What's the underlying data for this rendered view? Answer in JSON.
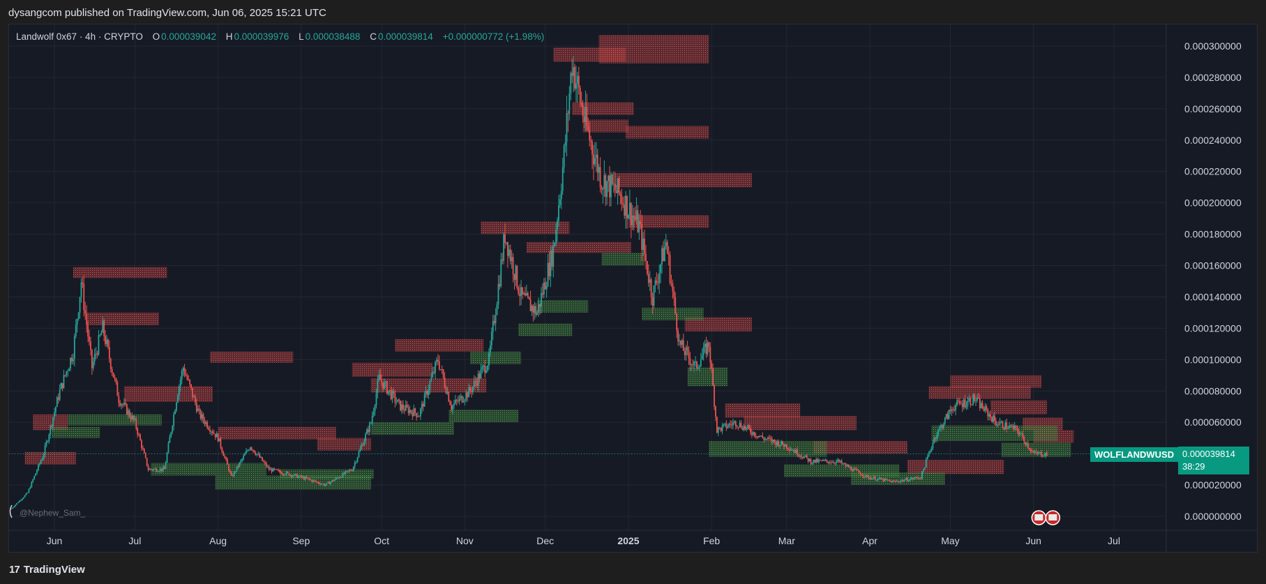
{
  "header": {
    "publish_text": "dysangcom published on TradingView.com, Jun 06, 2025 15:21 UTC"
  },
  "legend": {
    "symbol": "Landwolf 0x67 · 4h · CRYPTO",
    "o_label": "O",
    "o_value": "0.000039042",
    "h_label": "H",
    "h_value": "0.000039976",
    "l_label": "L",
    "l_value": "0.000038488",
    "c_label": "C",
    "c_value": "0.000039814",
    "change": "+0.000000772 (+1.98%)"
  },
  "price_tag": {
    "symbol": "WOLFLANDWUSD",
    "price": "0.000039814",
    "countdown": "38:29"
  },
  "watermark_user": "@Nephew_Sam_",
  "footer": {
    "brand": "TradingView",
    "logo_mark": "17"
  },
  "colors": {
    "background": "#161a25",
    "grid": "#232733",
    "up": "#26a69a",
    "down": "#ef5350",
    "supply_zone": "#b33b3b",
    "demand_zone": "#3d7a3a",
    "price_line": "#089981"
  },
  "chart_data": {
    "type": "candlestick",
    "title": "",
    "xlabel": "",
    "ylabel": "",
    "ylim": [
      0.0,
      0.0003
    ],
    "y_ticks": [
      "0.000300000",
      "0.000280000",
      "0.000260000",
      "0.000240000",
      "0.000220000",
      "0.000200000",
      "0.000180000",
      "0.000160000",
      "0.000140000",
      "0.000120000",
      "0.000100000",
      "0.000080000",
      "0.000060000",
      "0.000040000",
      "0.000020000",
      "0.000000000"
    ],
    "y_tick_values": [
      0.0003,
      0.00028,
      0.00026,
      0.00024,
      0.00022,
      0.0002,
      0.00018,
      0.00016,
      0.00014,
      0.00012,
      0.0001,
      8e-05,
      6e-05,
      4e-05,
      2e-05,
      0.0
    ],
    "x_ticks": [
      "Jun",
      "Jul",
      "Aug",
      "Sep",
      "Oct",
      "Nov",
      "Dec",
      "2025",
      "Feb",
      "Mar",
      "Apr",
      "May",
      "Jun",
      "Jul"
    ],
    "x_tick_dates": [
      "2024-06-01",
      "2024-07-01",
      "2024-08-01",
      "2024-09-01",
      "2024-10-01",
      "2024-11-01",
      "2024-12-01",
      "2025-01-01",
      "2025-02-01",
      "2025-03-01",
      "2025-04-01",
      "2025-05-01",
      "2025-06-01",
      "2025-07-01"
    ],
    "bold_ticks": [
      "2025"
    ],
    "grid": true,
    "last_price": 3.9814e-05,
    "price_path": [
      {
        "date": "2024-05-16",
        "price": 5e-06
      },
      {
        "date": "2024-05-22",
        "price": 1.5e-05
      },
      {
        "date": "2024-05-28",
        "price": 4e-05
      },
      {
        "date": "2024-06-03",
        "price": 8e-05
      },
      {
        "date": "2024-06-08",
        "price": 0.000105
      },
      {
        "date": "2024-06-11",
        "price": 0.00015
      },
      {
        "date": "2024-06-15",
        "price": 9.5e-05
      },
      {
        "date": "2024-06-19",
        "price": 0.00012
      },
      {
        "date": "2024-06-25",
        "price": 7.5e-05
      },
      {
        "date": "2024-07-01",
        "price": 6e-05
      },
      {
        "date": "2024-07-06",
        "price": 3e-05
      },
      {
        "date": "2024-07-12",
        "price": 3e-05
      },
      {
        "date": "2024-07-17",
        "price": 8e-05
      },
      {
        "date": "2024-07-19",
        "price": 9.5e-05
      },
      {
        "date": "2024-07-25",
        "price": 6.5e-05
      },
      {
        "date": "2024-08-01",
        "price": 5e-05
      },
      {
        "date": "2024-08-06",
        "price": 2.5e-05
      },
      {
        "date": "2024-08-13",
        "price": 4.5e-05
      },
      {
        "date": "2024-08-20",
        "price": 3e-05
      },
      {
        "date": "2024-09-01",
        "price": 2.5e-05
      },
      {
        "date": "2024-09-10",
        "price": 2e-05
      },
      {
        "date": "2024-09-20",
        "price": 3e-05
      },
      {
        "date": "2024-09-27",
        "price": 6e-05
      },
      {
        "date": "2024-09-30",
        "price": 8.8e-05
      },
      {
        "date": "2024-10-08",
        "price": 7e-05
      },
      {
        "date": "2024-10-15",
        "price": 6.5e-05
      },
      {
        "date": "2024-10-22",
        "price": 0.0001
      },
      {
        "date": "2024-10-27",
        "price": 7e-05
      },
      {
        "date": "2024-11-03",
        "price": 8e-05
      },
      {
        "date": "2024-11-10",
        "price": 0.0001
      },
      {
        "date": "2024-11-16",
        "price": 0.00018
      },
      {
        "date": "2024-11-22",
        "price": 0.00014
      },
      {
        "date": "2024-11-28",
        "price": 0.00013
      },
      {
        "date": "2024-12-04",
        "price": 0.00017
      },
      {
        "date": "2024-12-08",
        "price": 0.00023
      },
      {
        "date": "2024-12-11",
        "price": 0.00029
      },
      {
        "date": "2024-12-16",
        "price": 0.00025
      },
      {
        "date": "2024-12-22",
        "price": 0.000215
      },
      {
        "date": "2024-12-29",
        "price": 0.000205
      },
      {
        "date": "2025-01-05",
        "price": 0.000185
      },
      {
        "date": "2025-01-10",
        "price": 0.00014
      },
      {
        "date": "2025-01-15",
        "price": 0.000175
      },
      {
        "date": "2025-01-20",
        "price": 0.00011
      },
      {
        "date": "2025-01-26",
        "price": 9.5e-05
      },
      {
        "date": "2025-01-31",
        "price": 0.00011
      },
      {
        "date": "2025-02-03",
        "price": 5.5e-05
      },
      {
        "date": "2025-02-10",
        "price": 6e-05
      },
      {
        "date": "2025-02-20",
        "price": 5e-05
      },
      {
        "date": "2025-03-01",
        "price": 4.5e-05
      },
      {
        "date": "2025-03-10",
        "price": 3.5e-05
      },
      {
        "date": "2025-03-20",
        "price": 3.5e-05
      },
      {
        "date": "2025-03-31",
        "price": 2.5e-05
      },
      {
        "date": "2025-04-10",
        "price": 2.2e-05
      },
      {
        "date": "2025-04-20",
        "price": 2.5e-05
      },
      {
        "date": "2025-04-25",
        "price": 5e-05
      },
      {
        "date": "2025-05-02",
        "price": 7e-05
      },
      {
        "date": "2025-05-10",
        "price": 7.5e-05
      },
      {
        "date": "2025-05-18",
        "price": 6e-05
      },
      {
        "date": "2025-05-26",
        "price": 5.5e-05
      },
      {
        "date": "2025-06-01",
        "price": 4e-05
      },
      {
        "date": "2025-06-06",
        "price": 3.9814e-05
      }
    ],
    "supply_zones": [
      {
        "start": "2024-06-08",
        "end": "2024-07-13",
        "low": 0.000152,
        "high": 0.000159
      },
      {
        "start": "2024-06-13",
        "end": "2024-07-10",
        "low": 0.000122,
        "high": 0.00013
      },
      {
        "start": "2024-07-29",
        "end": "2024-08-29",
        "low": 9.8e-05,
        "high": 0.000105
      },
      {
        "start": "2024-06-27",
        "end": "2024-07-30",
        "low": 7.3e-05,
        "high": 8.3e-05
      },
      {
        "start": "2024-05-24",
        "end": "2024-06-06",
        "low": 5.5e-05,
        "high": 6.5e-05
      },
      {
        "start": "2024-05-21",
        "end": "2024-06-09",
        "low": 3.3e-05,
        "high": 4.1e-05
      },
      {
        "start": "2024-08-01",
        "end": "2024-09-14",
        "low": 4.9e-05,
        "high": 5.7e-05
      },
      {
        "start": "2024-10-06",
        "end": "2024-11-08",
        "low": 0.000105,
        "high": 0.000113
      },
      {
        "start": "2024-09-20",
        "end": "2024-10-20",
        "low": 8.9e-05,
        "high": 9.8e-05
      },
      {
        "start": "2024-09-27",
        "end": "2024-11-09",
        "low": 7.9e-05,
        "high": 8.8e-05
      },
      {
        "start": "2024-09-07",
        "end": "2024-09-27",
        "low": 4.2e-05,
        "high": 5e-05
      },
      {
        "start": "2024-11-07",
        "end": "2024-12-10",
        "low": 0.00018,
        "high": 0.000188
      },
      {
        "start": "2024-11-24",
        "end": "2025-01-02",
        "low": 0.000168,
        "high": 0.000175
      },
      {
        "start": "2024-12-04",
        "end": "2024-12-31",
        "low": 0.00029,
        "high": 0.000299
      },
      {
        "start": "2024-12-21",
        "end": "2025-01-31",
        "low": 0.000289,
        "high": 0.000307
      },
      {
        "start": "2024-12-11",
        "end": "2025-01-03",
        "low": 0.000256,
        "high": 0.000264
      },
      {
        "start": "2024-12-15",
        "end": "2025-01-01",
        "low": 0.000245,
        "high": 0.000253
      },
      {
        "start": "2024-12-31",
        "end": "2025-01-31",
        "low": 0.000241,
        "high": 0.000249
      },
      {
        "start": "2024-12-27",
        "end": "2025-02-16",
        "low": 0.00021,
        "high": 0.000219
      },
      {
        "start": "2025-01-01",
        "end": "2025-01-31",
        "low": 0.000184,
        "high": 0.000192
      },
      {
        "start": "2025-01-22",
        "end": "2025-02-16",
        "low": 0.000118,
        "high": 0.000127
      },
      {
        "start": "2025-02-06",
        "end": "2025-03-06",
        "low": 6.3e-05,
        "high": 7.2e-05
      },
      {
        "start": "2025-02-13",
        "end": "2025-03-27",
        "low": 5.5e-05,
        "high": 6.4e-05
      },
      {
        "start": "2025-03-11",
        "end": "2025-04-15",
        "low": 4e-05,
        "high": 4.8e-05
      },
      {
        "start": "2025-04-15",
        "end": "2025-05-21",
        "low": 2.7e-05,
        "high": 3.6e-05
      },
      {
        "start": "2025-04-23",
        "end": "2025-05-31",
        "low": 7.5e-05,
        "high": 8.3e-05
      },
      {
        "start": "2025-05-01",
        "end": "2025-06-04",
        "low": 8.2e-05,
        "high": 9e-05
      },
      {
        "start": "2025-05-16",
        "end": "2025-06-06",
        "low": 6.5e-05,
        "high": 7.4e-05
      },
      {
        "start": "2025-05-28",
        "end": "2025-06-12",
        "low": 5.5e-05,
        "high": 6.3e-05
      },
      {
        "start": "2025-06-01",
        "end": "2025-06-16",
        "low": 4.7e-05,
        "high": 5.5e-05
      }
    ],
    "demand_zones": [
      {
        "start": "2024-06-06",
        "end": "2024-07-11",
        "low": 5.8e-05,
        "high": 6.5e-05
      },
      {
        "start": "2024-05-31",
        "end": "2024-06-18",
        "low": 5e-05,
        "high": 5.7e-05
      },
      {
        "start": "2024-07-07",
        "end": "2024-08-19",
        "low": 2.6e-05,
        "high": 3.4e-05
      },
      {
        "start": "2024-07-31",
        "end": "2024-09-27",
        "low": 1.7e-05,
        "high": 2.6e-05
      },
      {
        "start": "2024-08-24",
        "end": "2024-09-28",
        "low": 2.4e-05,
        "high": 3e-05
      },
      {
        "start": "2024-09-27",
        "end": "2024-10-28",
        "low": 5.2e-05,
        "high": 6e-05
      },
      {
        "start": "2024-10-26",
        "end": "2024-11-21",
        "low": 6e-05,
        "high": 6.8e-05
      },
      {
        "start": "2024-11-03",
        "end": "2024-11-22",
        "low": 9.7e-05,
        "high": 0.000105
      },
      {
        "start": "2024-11-21",
        "end": "2024-12-11",
        "low": 0.000115,
        "high": 0.000123
      },
      {
        "start": "2024-11-28",
        "end": "2024-12-17",
        "low": 0.00013,
        "high": 0.000138
      },
      {
        "start": "2024-12-22",
        "end": "2025-01-07",
        "low": 0.00016,
        "high": 0.000168
      },
      {
        "start": "2025-01-06",
        "end": "2025-01-29",
        "low": 0.000125,
        "high": 0.000133
      },
      {
        "start": "2025-01-23",
        "end": "2025-02-07",
        "low": 8.3e-05,
        "high": 9.5e-05
      },
      {
        "start": "2025-01-31",
        "end": "2025-03-16",
        "low": 3.8e-05,
        "high": 4.8e-05
      },
      {
        "start": "2025-02-28",
        "end": "2025-04-12",
        "low": 2.5e-05,
        "high": 3.3e-05
      },
      {
        "start": "2025-03-25",
        "end": "2025-04-29",
        "low": 2e-05,
        "high": 2.8e-05
      },
      {
        "start": "2025-04-24",
        "end": "2025-06-10",
        "low": 4.8e-05,
        "high": 5.8e-05
      },
      {
        "start": "2025-05-20",
        "end": "2025-06-15",
        "low": 3.8e-05,
        "high": 4.7e-05
      }
    ]
  }
}
